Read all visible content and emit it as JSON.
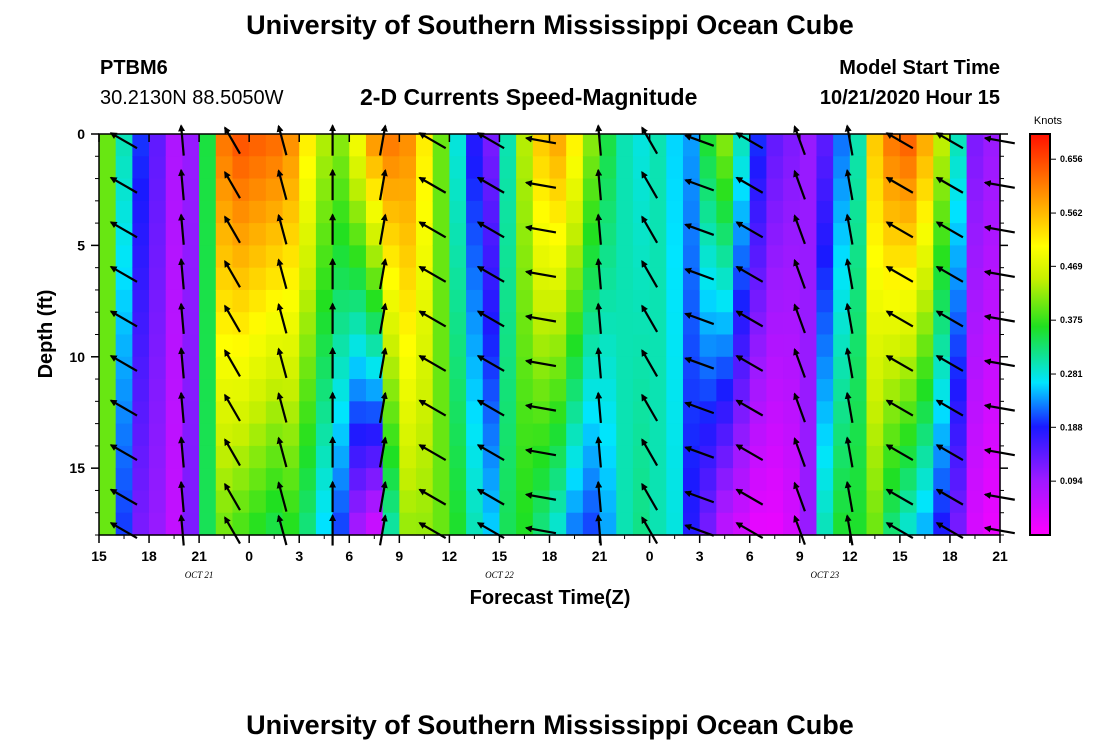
{
  "header": {
    "title": "University of Southern Mississippi Ocean Cube",
    "station": "PTBM6",
    "coords": "30.2130N 88.5050W",
    "plot_title": "2-D Currents Speed-Magnitude",
    "model_start_label": "Model Start Time",
    "model_start_value": "10/21/2020 Hour 15"
  },
  "footer": {
    "title": "University of Southern Mississippi Ocean Cube"
  },
  "chart_data": {
    "type": "heatmap",
    "title": "2-D Currents Speed-Magnitude",
    "xlabel": "Forecast Time(Z)",
    "ylabel": "Depth (ft)",
    "x_ticks": [
      "15",
      "18",
      "21",
      "0",
      "3",
      "6",
      "9",
      "12",
      "15",
      "18",
      "21",
      "0",
      "3",
      "6",
      "9",
      "12",
      "15",
      "18",
      "21"
    ],
    "date_labels": [
      {
        "text": "OCT  21",
        "at_tick": 2
      },
      {
        "text": "OCT  22",
        "at_tick": 8
      },
      {
        "text": "OCT  23",
        "at_tick": 14.5
      }
    ],
    "xlim_hours": [
      0,
      54
    ],
    "y_ticks": [
      0,
      5,
      10,
      15
    ],
    "ylim": [
      0,
      18
    ],
    "colorbar": {
      "units": "Knots",
      "min": 0.0,
      "max": 0.7,
      "tick_values": [
        0.656,
        0.562,
        0.469,
        0.375,
        0.281,
        0.188,
        0.094
      ],
      "tick_labels": [
        "0.656",
        "0.562",
        "0.469",
        "0.375",
        "0.281",
        "0.188",
        "0.094"
      ]
    },
    "time_hours": [
      0,
      1,
      2,
      3,
      4,
      5,
      6,
      7,
      8,
      9,
      10,
      11,
      12,
      13,
      14,
      15,
      16,
      17,
      18,
      19,
      20,
      21,
      22,
      23,
      24,
      25,
      26,
      27,
      28,
      29,
      30,
      31,
      32,
      33,
      34,
      35,
      36,
      37,
      38,
      39,
      40,
      41,
      42,
      43,
      44,
      45,
      46,
      47,
      48,
      49,
      50,
      51,
      52,
      53,
      54
    ],
    "surface_speed": [
      0.4,
      0.3,
      0.2,
      0.14,
      0.08,
      0.1,
      0.35,
      0.62,
      0.65,
      0.64,
      0.63,
      0.6,
      0.52,
      0.44,
      0.42,
      0.5,
      0.6,
      0.62,
      0.6,
      0.52,
      0.4,
      0.28,
      0.18,
      0.12,
      0.3,
      0.44,
      0.55,
      0.58,
      0.52,
      0.42,
      0.35,
      0.3,
      0.28,
      0.3,
      0.26,
      0.24,
      0.36,
      0.42,
      0.3,
      0.2,
      0.14,
      0.12,
      0.1,
      0.14,
      0.22,
      0.3,
      0.55,
      0.62,
      0.64,
      0.58,
      0.45,
      0.3,
      0.12,
      0.1,
      0.1
    ],
    "bottom_speed": [
      0.4,
      0.2,
      0.12,
      0.1,
      0.06,
      0.12,
      0.34,
      0.4,
      0.38,
      0.36,
      0.34,
      0.36,
      0.32,
      0.26,
      0.2,
      0.08,
      0.04,
      0.3,
      0.42,
      0.42,
      0.4,
      0.36,
      0.3,
      0.26,
      0.34,
      0.36,
      0.32,
      0.28,
      0.22,
      0.2,
      0.24,
      0.3,
      0.32,
      0.3,
      0.28,
      0.18,
      0.12,
      0.06,
      0.04,
      0.02,
      0.02,
      0.04,
      0.1,
      0.3,
      0.36,
      0.36,
      0.4,
      0.32,
      0.28,
      0.24,
      0.18,
      0.12,
      0.04,
      0.02,
      0.02
    ],
    "vector_times": [
      1.5,
      5,
      8,
      11,
      14,
      17,
      20,
      23.5,
      26.5,
      30,
      33,
      36,
      39,
      42,
      45,
      48,
      51,
      54
    ],
    "vector_angles_deg_from_east": [
      150,
      95,
      120,
      105,
      90,
      80,
      150,
      150,
      170,
      95,
      120,
      160,
      150,
      110,
      100,
      150,
      150,
      170
    ]
  }
}
